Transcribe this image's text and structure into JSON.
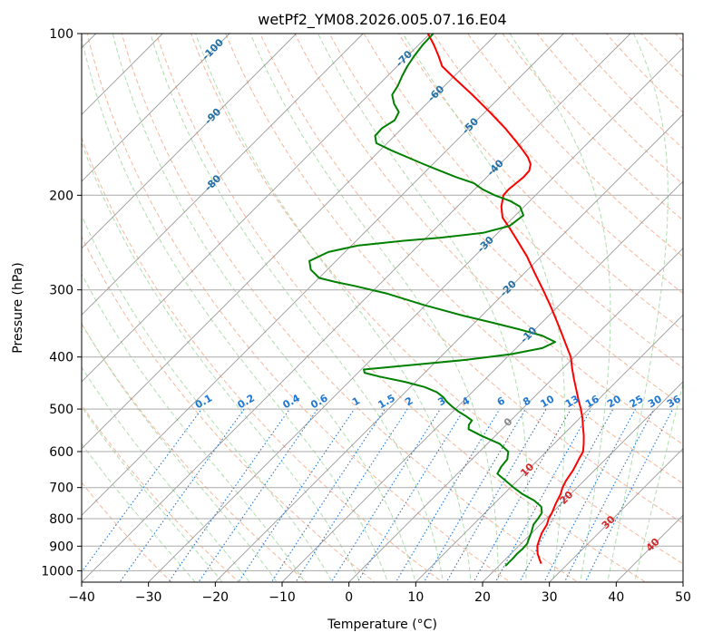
{
  "chart_data": {
    "type": "skew-t",
    "title": "wetPf2_YM08.2026.005.07.16.E04",
    "xlabel": "Temperature (°C)",
    "ylabel": "Pressure (hPa)",
    "xlim": [
      -40,
      50
    ],
    "ylim": [
      1050,
      100
    ],
    "x_ticks": [
      -40,
      -30,
      -20,
      -10,
      0,
      10,
      20,
      30,
      40,
      50
    ],
    "x_tick_labels": [
      "−40",
      "−30",
      "−20",
      "−10",
      "0",
      "10",
      "20",
      "30",
      "40",
      "50"
    ],
    "y_ticks": [
      100,
      200,
      300,
      400,
      500,
      600,
      700,
      800,
      900,
      1000
    ],
    "y_tick_labels": [
      "100",
      "200",
      "300",
      "400",
      "500",
      "600",
      "700",
      "800",
      "900",
      "1000"
    ],
    "grid": true,
    "colors": {
      "temperature": "#ff0000",
      "dewpoint": "#008000",
      "isotherm": "#888888",
      "isobar": "#aaaaaa",
      "dry_adiabat": "#f4a582",
      "moist_adiabat": "#a6d9a6",
      "mixing_ratio": "#1f77d4",
      "isotherm_label_cold": "#1f6fa8",
      "isotherm_label_warm": "#d62728",
      "freezing_label": "#888888"
    },
    "series": [
      {
        "name": "Temperature",
        "pressure": [
          970,
          950,
          930,
          900,
          870,
          850,
          820,
          800,
          780,
          750,
          720,
          700,
          680,
          650,
          620,
          600,
          580,
          560,
          540,
          520,
          500,
          480,
          460,
          440,
          420,
          400,
          380,
          360,
          340,
          320,
          300,
          280,
          260,
          250,
          240,
          230,
          220,
          210,
          200,
          195,
          190,
          185,
          180,
          175,
          170,
          165,
          160,
          150,
          140,
          130,
          120,
          115,
          110,
          105,
          100
        ],
        "values": [
          26.0,
          25.0,
          24.0,
          22.8,
          22.0,
          21.5,
          21.0,
          20.4,
          20.0,
          19.2,
          18.5,
          17.8,
          17.3,
          16.8,
          16.0,
          15.5,
          14.4,
          13.2,
          11.8,
          10.4,
          8.8,
          7.0,
          5.2,
          3.3,
          1.4,
          -0.5,
          -3.0,
          -5.6,
          -8.4,
          -11.4,
          -14.7,
          -18.3,
          -22.1,
          -24.3,
          -26.6,
          -29.0,
          -31.6,
          -33.4,
          -34.8,
          -34.9,
          -34.7,
          -34.5,
          -34.6,
          -35.4,
          -36.8,
          -38.6,
          -40.5,
          -44.6,
          -49.3,
          -54.5,
          -60.3,
          -63.3,
          -65.4,
          -67.7,
          -70.3
        ]
      },
      {
        "name": "Dewpoint",
        "pressure": [
          980,
          950,
          930,
          910,
          890,
          870,
          850,
          820,
          800,
          780,
          760,
          740,
          720,
          700,
          680,
          660,
          640,
          620,
          600,
          580,
          560,
          545,
          535,
          525,
          515,
          505,
          495,
          485,
          475,
          465,
          455,
          445,
          435,
          428,
          422,
          415,
          405,
          395,
          385,
          375,
          365,
          355,
          345,
          335,
          320,
          305,
          295,
          290,
          285,
          275,
          265,
          255,
          248,
          243,
          240,
          235,
          228,
          218,
          210,
          205,
          200,
          195,
          190,
          185,
          180,
          175,
          170,
          165,
          160,
          155,
          150,
          145,
          140,
          135,
          130,
          125,
          120,
          115,
          110,
          105,
          100
        ],
        "values": [
          21.0,
          21.0,
          20.9,
          21.0,
          20.9,
          20.4,
          19.9,
          19.0,
          18.8,
          18.5,
          17.5,
          15.5,
          12.8,
          10.5,
          8.3,
          6.0,
          5.5,
          5.3,
          4.3,
          1.8,
          -2.2,
          -5.0,
          -5.6,
          -5.8,
          -7.4,
          -9.2,
          -10.8,
          -12.3,
          -13.6,
          -15.3,
          -17.9,
          -21.6,
          -26.2,
          -29.0,
          -29.6,
          -24.1,
          -15.8,
          -9.8,
          -6.1,
          -5.1,
          -8.0,
          -12.5,
          -17.5,
          -22.8,
          -30.3,
          -37.4,
          -43.5,
          -47.0,
          -50.0,
          -52.5,
          -54.0,
          -52.5,
          -49.0,
          -42.9,
          -38.0,
          -32.2,
          -29.3,
          -28.8,
          -30.6,
          -32.9,
          -36.1,
          -38.8,
          -41.0,
          -44.6,
          -48.0,
          -51.4,
          -54.8,
          -58.3,
          -61.6,
          -62.9,
          -63.0,
          -62.3,
          -62.9,
          -64.9,
          -66.5,
          -67.0,
          -67.8,
          -68.5,
          -69.0,
          -69.4,
          -69.5
        ]
      }
    ],
    "isotherm_labels": [
      {
        "t": -100,
        "text": "-100"
      },
      {
        "t": -90,
        "text": "-90"
      },
      {
        "t": -80,
        "text": "-80"
      },
      {
        "t": -70,
        "text": "-70"
      },
      {
        "t": -60,
        "text": "-60"
      },
      {
        "t": -50,
        "text": "-50"
      },
      {
        "t": -40,
        "text": "-40"
      },
      {
        "t": -30,
        "text": "-30"
      },
      {
        "t": -20,
        "text": "-20"
      },
      {
        "t": -10,
        "text": "-10"
      },
      {
        "t": 0,
        "text": "0"
      },
      {
        "t": 10,
        "text": "10"
      },
      {
        "t": 20,
        "text": "20"
      },
      {
        "t": 30,
        "text": "30"
      },
      {
        "t": 40,
        "text": "40"
      }
    ],
    "mixing_ratios": [
      {
        "w": 0.1,
        "text": "0.1"
      },
      {
        "w": 0.2,
        "text": "0.2"
      },
      {
        "w": 0.4,
        "text": "0.4"
      },
      {
        "w": 0.6,
        "text": "0.6"
      },
      {
        "w": 1,
        "text": "1"
      },
      {
        "w": 1.5,
        "text": "1.5"
      },
      {
        "w": 2,
        "text": "2"
      },
      {
        "w": 3,
        "text": "3"
      },
      {
        "w": 4,
        "text": "4"
      },
      {
        "w": 6,
        "text": "6"
      },
      {
        "w": 8,
        "text": "8"
      },
      {
        "w": 10,
        "text": "10"
      },
      {
        "w": 13,
        "text": "13"
      },
      {
        "w": 16,
        "text": "16"
      },
      {
        "w": 20,
        "text": "20"
      },
      {
        "w": 25,
        "text": "25"
      },
      {
        "w": 30,
        "text": "30"
      },
      {
        "w": 36,
        "text": "36"
      }
    ]
  }
}
